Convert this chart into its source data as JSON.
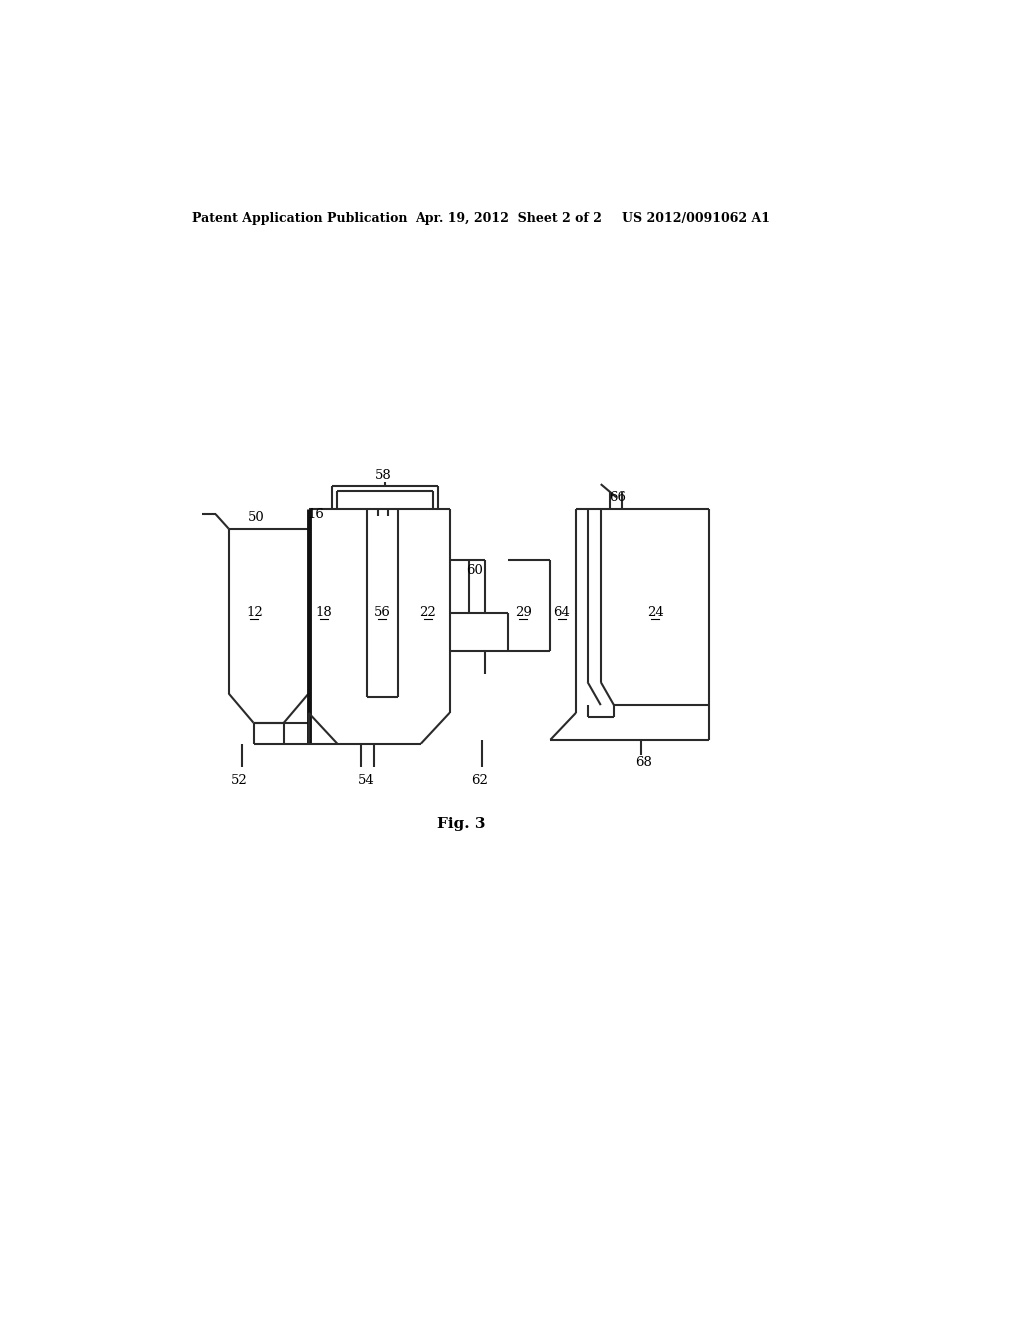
{
  "bg_color": "#ffffff",
  "lc": "#2a2a2a",
  "lw": 1.5,
  "blw": 3.5,
  "header_left": "Patent Application Publication",
  "header_center": "Apr. 19, 2012  Sheet 2 of 2",
  "header_right": "US 2012/0091062 A1",
  "fig_label": "Fig. 3"
}
